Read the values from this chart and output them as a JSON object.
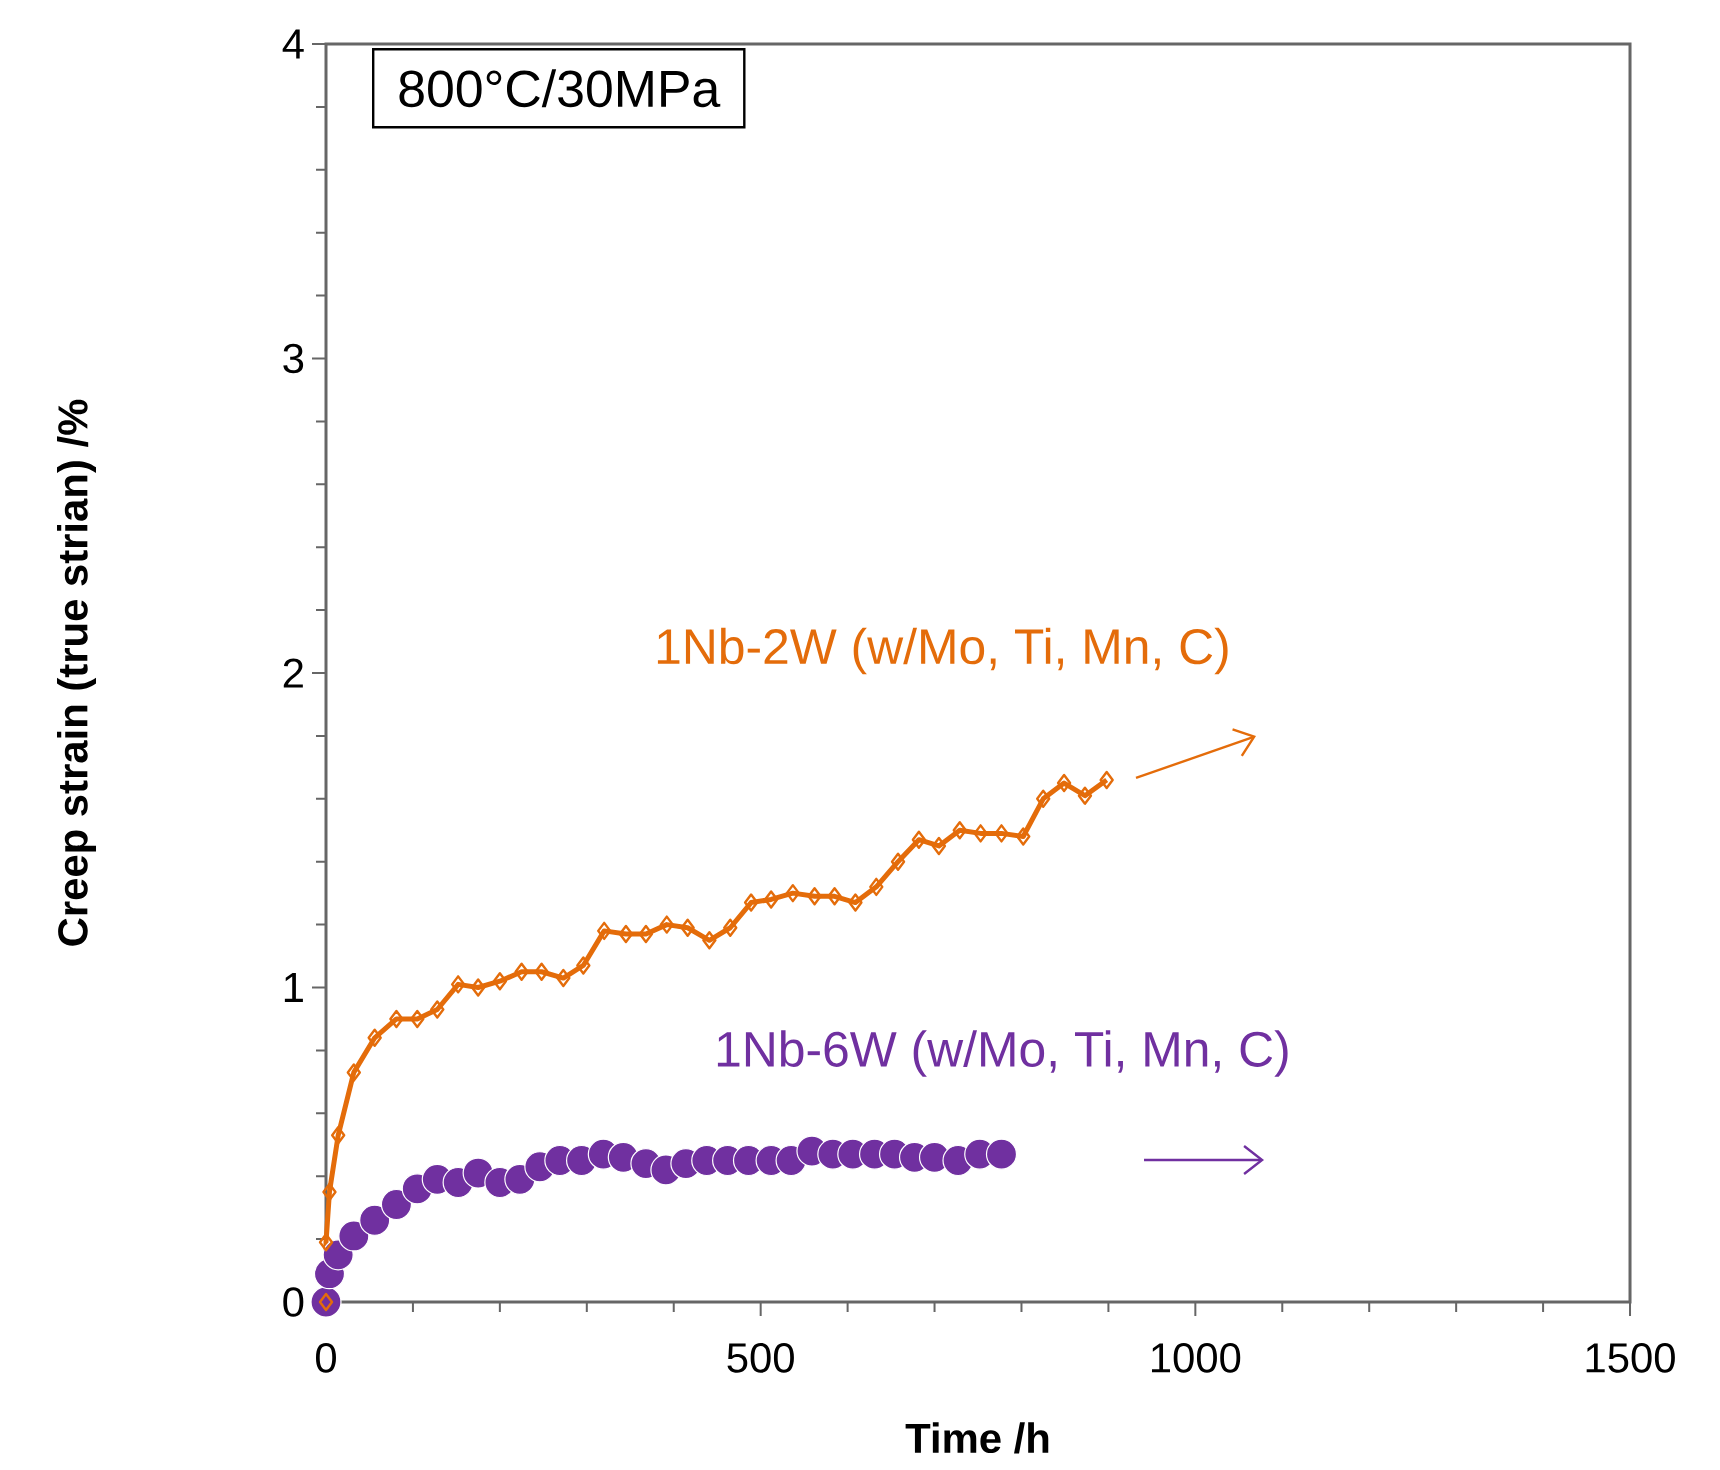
{
  "chart_data": {
    "type": "line",
    "title": "800°C/30MPa",
    "xlabel": "Time /h",
    "ylabel": "Creep strain (true strian) /%",
    "xlim": [
      0,
      1500
    ],
    "xticks": [
      0,
      500,
      1000,
      1500
    ],
    "ylim": [
      0,
      4
    ],
    "yticks": [
      0,
      1,
      2,
      3,
      4
    ],
    "series": [
      {
        "name": "1Nb-2W (w/Mo, Ti, Mn, C)",
        "color": "#e46c0a",
        "marker": "diamond",
        "x": [
          0,
          0,
          4,
          14,
          32,
          56,
          81,
          105,
          128,
          152,
          175,
          200,
          225,
          248,
          273,
          296,
          320,
          345,
          368,
          392,
          416,
          441,
          465,
          489,
          512,
          537,
          562,
          585,
          609,
          633,
          658,
          682,
          705,
          729,
          753,
          777,
          802,
          825,
          849,
          873,
          898
        ],
        "values": [
          0,
          0.19,
          0.35,
          0.53,
          0.73,
          0.84,
          0.9,
          0.9,
          0.93,
          1.01,
          1.0,
          1.02,
          1.05,
          1.05,
          1.03,
          1.07,
          1.18,
          1.17,
          1.17,
          1.2,
          1.19,
          1.15,
          1.19,
          1.27,
          1.28,
          1.3,
          1.29,
          1.29,
          1.27,
          1.32,
          1.4,
          1.47,
          1.45,
          1.5,
          1.49,
          1.49,
          1.48,
          1.6,
          1.65,
          1.61,
          1.66
        ]
      },
      {
        "name": "1Nb-6W (w/Mo, Ti, Mn, C)",
        "color": "#7030a0",
        "marker": "circle",
        "type": "scatter",
        "x": [
          0,
          4,
          14,
          32,
          56,
          81,
          105,
          128,
          152,
          175,
          200,
          223,
          246,
          269,
          294,
          319,
          342,
          368,
          391,
          414,
          438,
          462,
          486,
          512,
          535,
          559,
          583,
          606,
          631,
          654,
          677,
          700,
          727,
          752,
          777
        ],
        "values": [
          0,
          0.09,
          0.15,
          0.21,
          0.26,
          0.31,
          0.36,
          0.39,
          0.38,
          0.41,
          0.38,
          0.39,
          0.43,
          0.45,
          0.45,
          0.47,
          0.46,
          0.44,
          0.42,
          0.44,
          0.45,
          0.45,
          0.45,
          0.45,
          0.45,
          0.48,
          0.47,
          0.47,
          0.47,
          0.47,
          0.46,
          0.46,
          0.45,
          0.47,
          0.47
        ]
      }
    ]
  }
}
